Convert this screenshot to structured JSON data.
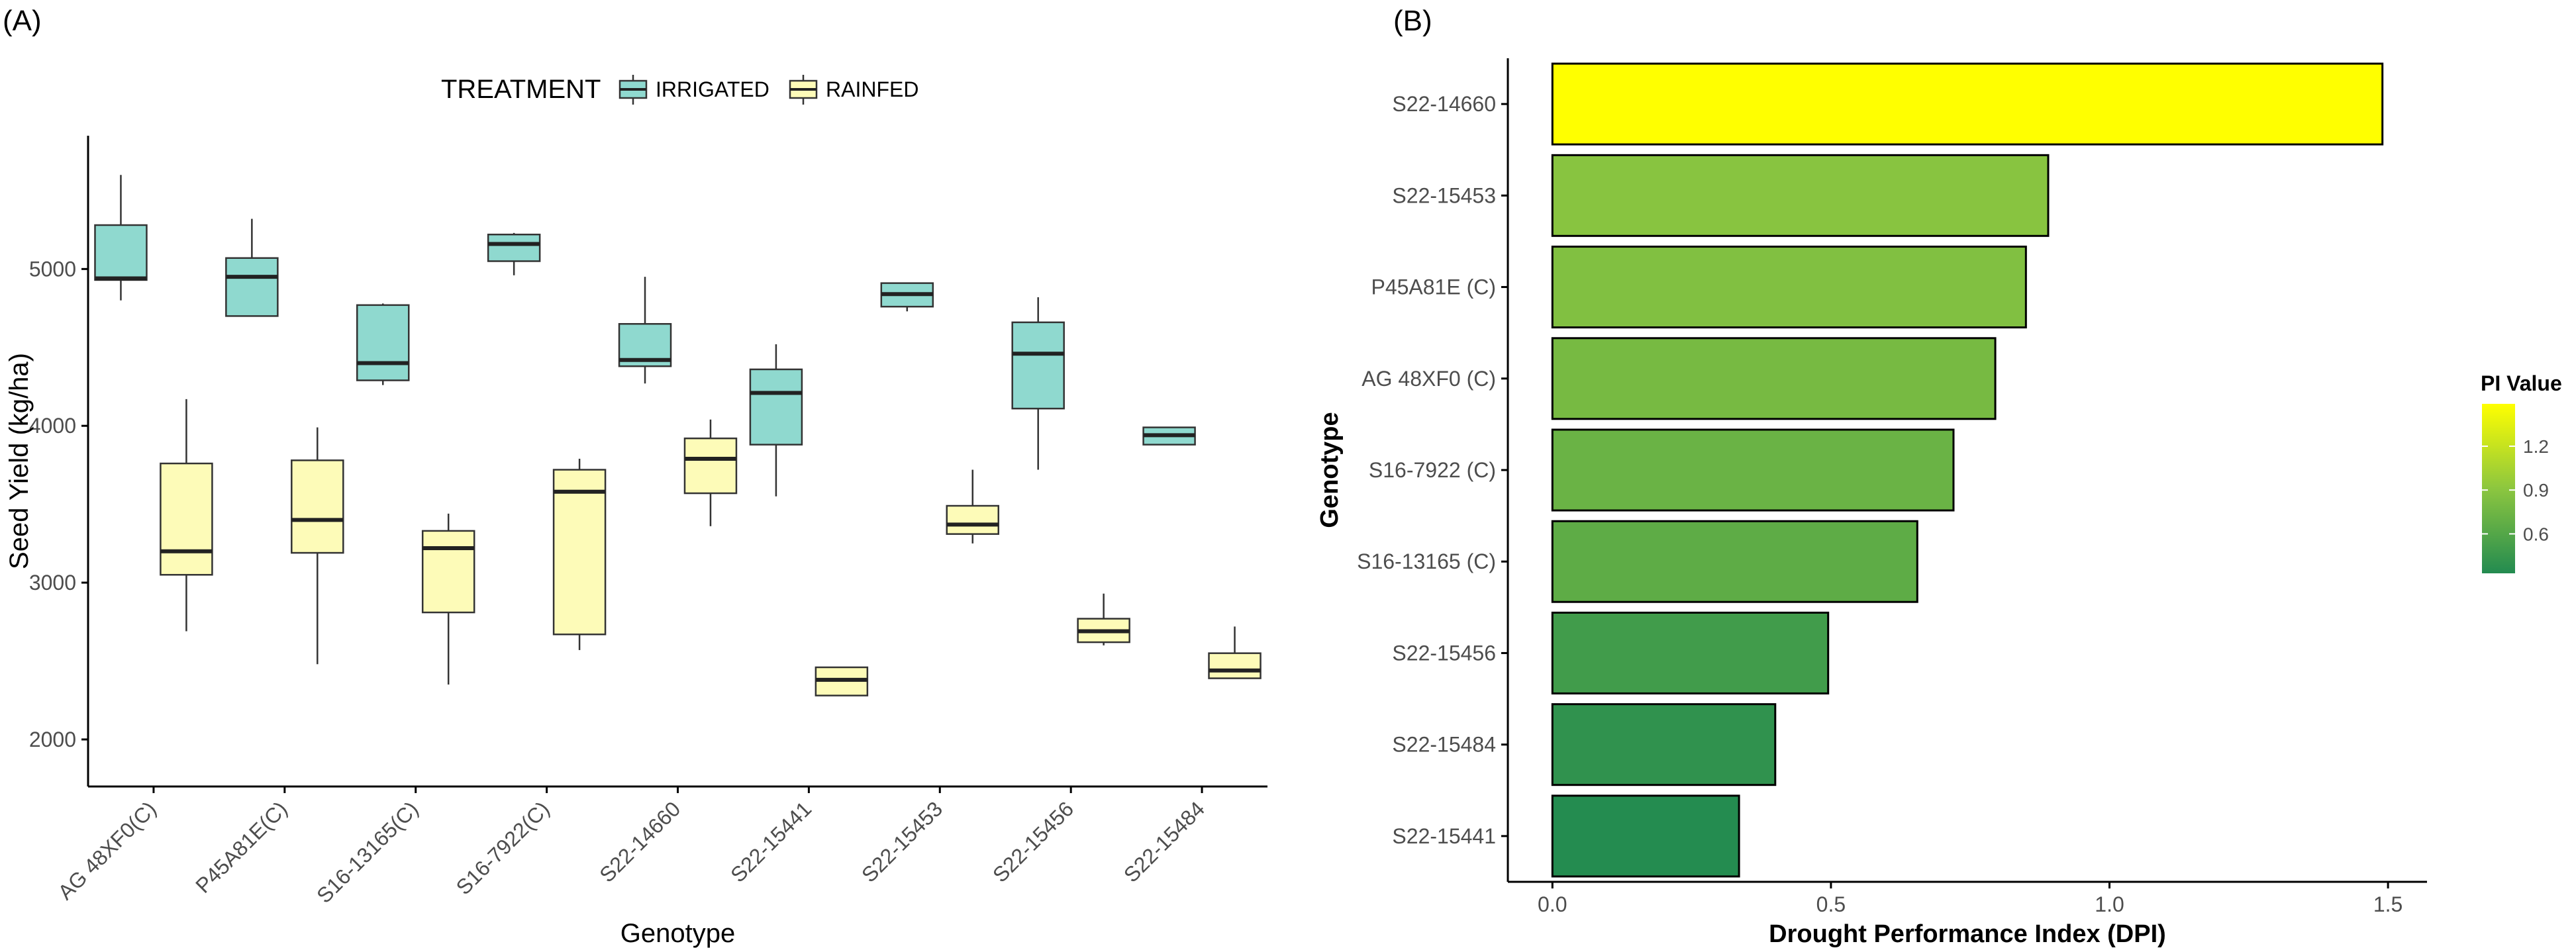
{
  "chart_data": [
    {
      "type": "boxplot",
      "panel_label": "(A)",
      "title": "",
      "xlabel": "Genotype",
      "ylabel": "Seed Yield (kg/ha)",
      "ylim": [
        1700,
        5850
      ],
      "yticks": [
        2000,
        3000,
        4000,
        5000
      ],
      "grid": false,
      "legend": {
        "title": "TREATMENT",
        "position": "top"
      },
      "categories": [
        "AG 48XF0(C)",
        "P45A81E(C)",
        "S16-13165(C)",
        "S16-7922(C)",
        "S22-14660",
        "S22-15441",
        "S22-15453",
        "S22-15456",
        "S22-15484"
      ],
      "series": [
        {
          "name": "IRRIGATED",
          "color": "#8fd9cf",
          "boxes": [
            {
              "min": 4800,
              "q1": 4930,
              "median": 4940,
              "q3": 5280,
              "max": 5600
            },
            {
              "min": 4700,
              "q1": 4700,
              "median": 4950,
              "q3": 5070,
              "max": 5320
            },
            {
              "min": 4260,
              "q1": 4290,
              "median": 4400,
              "q3": 4770,
              "max": 4780
            },
            {
              "min": 4960,
              "q1": 5050,
              "median": 5160,
              "q3": 5220,
              "max": 5230
            },
            {
              "min": 4270,
              "q1": 4380,
              "median": 4420,
              "q3": 4650,
              "max": 4950
            },
            {
              "min": 3550,
              "q1": 3880,
              "median": 4210,
              "q3": 4360,
              "max": 4520
            },
            {
              "min": 4730,
              "q1": 4760,
              "median": 4840,
              "q3": 4910,
              "max": 4910
            },
            {
              "min": 3720,
              "q1": 4110,
              "median": 4460,
              "q3": 4660,
              "max": 4820
            },
            {
              "min": 3880,
              "q1": 3880,
              "median": 3940,
              "q3": 3990,
              "max": 3990
            }
          ]
        },
        {
          "name": "RAINFED",
          "color": "#fdfbb8",
          "boxes": [
            {
              "min": 2690,
              "q1": 3050,
              "median": 3200,
              "q3": 3760,
              "max": 4170
            },
            {
              "min": 2480,
              "q1": 3190,
              "median": 3400,
              "q3": 3780,
              "max": 3990
            },
            {
              "min": 2350,
              "q1": 2810,
              "median": 3220,
              "q3": 3330,
              "max": 3440
            },
            {
              "min": 2570,
              "q1": 2670,
              "median": 3580,
              "q3": 3720,
              "max": 3790
            },
            {
              "min": 3360,
              "q1": 3570,
              "median": 3790,
              "q3": 3920,
              "max": 4040
            },
            {
              "min": 2280,
              "q1": 2280,
              "median": 2380,
              "q3": 2460,
              "max": 2460
            },
            {
              "min": 3250,
              "q1": 3310,
              "median": 3370,
              "q3": 3490,
              "max": 3720
            },
            {
              "min": 2600,
              "q1": 2620,
              "median": 2690,
              "q3": 2770,
              "max": 2930
            },
            {
              "min": 2390,
              "q1": 2390,
              "median": 2440,
              "q3": 2550,
              "max": 2720
            }
          ]
        }
      ]
    },
    {
      "type": "bar",
      "orientation": "horizontal",
      "panel_label": "(B)",
      "title": "",
      "xlabel": "Drought Performance Index (DPI)",
      "ylabel": "Genotype",
      "xlim": [
        -0.08,
        1.57
      ],
      "xticks": [
        0.0,
        0.5,
        1.0,
        1.5
      ],
      "xtick_labels": [
        "0.0",
        "0.5",
        "1.0",
        "1.5"
      ],
      "grid": false,
      "categories": [
        "S22-14660",
        "S22-15453",
        "P45A81E (C)",
        "AG 48XF0 (C)",
        "S16-7922 (C)",
        "S16-13165 (C)",
        "S22-15456",
        "S22-15484",
        "S22-15441"
      ],
      "values": [
        1.49,
        0.89,
        0.85,
        0.795,
        0.72,
        0.655,
        0.495,
        0.4,
        0.335
      ],
      "colorbar": {
        "title": "PI Value",
        "position": "right",
        "range": [
          0.33,
          1.49
        ],
        "ticks": [
          0.6,
          0.9,
          1.2
        ],
        "tick_labels": [
          "0.6",
          "0.9",
          "1.2"
        ],
        "low_color": "#238b50",
        "high_color": "#ffff00"
      }
    }
  ]
}
